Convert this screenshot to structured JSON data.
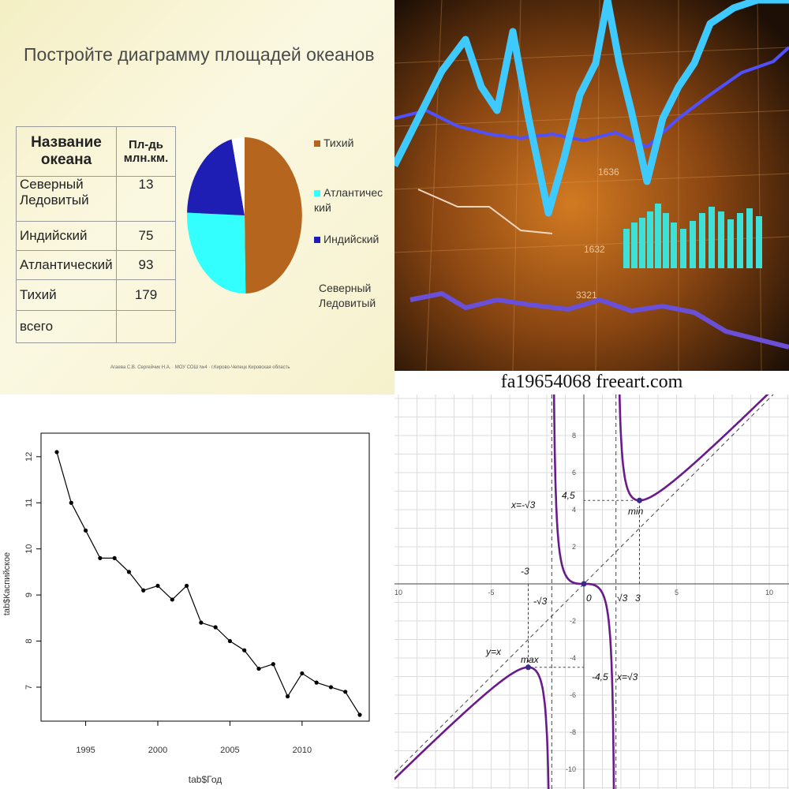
{
  "slide": {
    "title": "Постройте диаграмму площадей океанов",
    "table_headers": [
      "Название океана",
      "Пл-дь млн.км."
    ],
    "table_rows": [
      {
        "name": "Северный Ледовитый",
        "area": "13"
      },
      {
        "name": "Индийский",
        "area": "75"
      },
      {
        "name": "Атлантический",
        "area": "93"
      },
      {
        "name": "Тихий",
        "area": "179"
      },
      {
        "name": "всего",
        "area": ""
      }
    ],
    "credit": "Агаева С.В. Сергейчик Н.А. · МОУ СОШ №4 · г.Кирово-Чепецк Кировская область"
  },
  "stock_photo": {
    "caption": "fa19654068 freeart.com",
    "labels": [
      "1636",
      "1632",
      "3321"
    ]
  },
  "chart_data": [
    {
      "type": "pie",
      "title": "",
      "categories": [
        "Тихий",
        "Атлантический",
        "Индийский",
        "Северный Ледовитый"
      ],
      "legend_labels": [
        "Тихий",
        "Атлантичес кий",
        "Индийский",
        "Северный Ледовитый"
      ],
      "values": [
        179,
        93,
        75,
        13
      ],
      "colors": [
        "#b5651d",
        "#33ffff",
        "#1e1eb4",
        "#ffffff"
      ],
      "legend": "right"
    },
    {
      "type": "scatter",
      "title": "",
      "xlabel": "tab$Год",
      "ylabel": "tab$Каспийское",
      "x": [
        1993,
        1994,
        1995,
        1996,
        1997,
        1998,
        1999,
        2000,
        2001,
        2002,
        2003,
        2004,
        2005,
        2006,
        2007,
        2008,
        2009,
        2010,
        2011,
        2012,
        2013,
        2014
      ],
      "y": [
        12.1,
        11.0,
        10.4,
        9.8,
        9.8,
        9.5,
        9.1,
        9.2,
        8.9,
        9.2,
        8.4,
        8.3,
        8.0,
        7.8,
        7.4,
        7.5,
        6.8,
        7.3,
        7.1,
        7.0,
        6.9,
        6.4
      ],
      "xticks": [
        "1995",
        "2000",
        "2005",
        "2010"
      ],
      "yticks": [
        "7",
        "8",
        "9",
        "10",
        "11",
        "12"
      ],
      "xlim": [
        1993,
        2014
      ],
      "ylim": [
        6.4,
        12.1
      ],
      "grid": false
    },
    {
      "type": "line",
      "title": "",
      "function": "y = x + 3x/(x^2 - 3)",
      "xlim": [
        -10,
        10
      ],
      "ylim": [
        -10,
        10
      ],
      "xticks": [
        "10",
        "-5",
        "5",
        "10"
      ],
      "yticks": [
        "8",
        "6",
        "4",
        "2",
        "-2",
        "-4",
        "-6",
        "-8",
        "-10"
      ],
      "annotations": {
        "asymptote_neg": "x=-√3",
        "asymptote_pos": "x=√3",
        "diag": "y=x",
        "max": "max",
        "min": "min",
        "min_y": "4,5",
        "max_y": "-4,5",
        "neg3": "-3",
        "neg_sqrt3": "-√3",
        "zero": "0",
        "sqrt3": "√3",
        "three": "3"
      },
      "grid": true
    }
  ]
}
